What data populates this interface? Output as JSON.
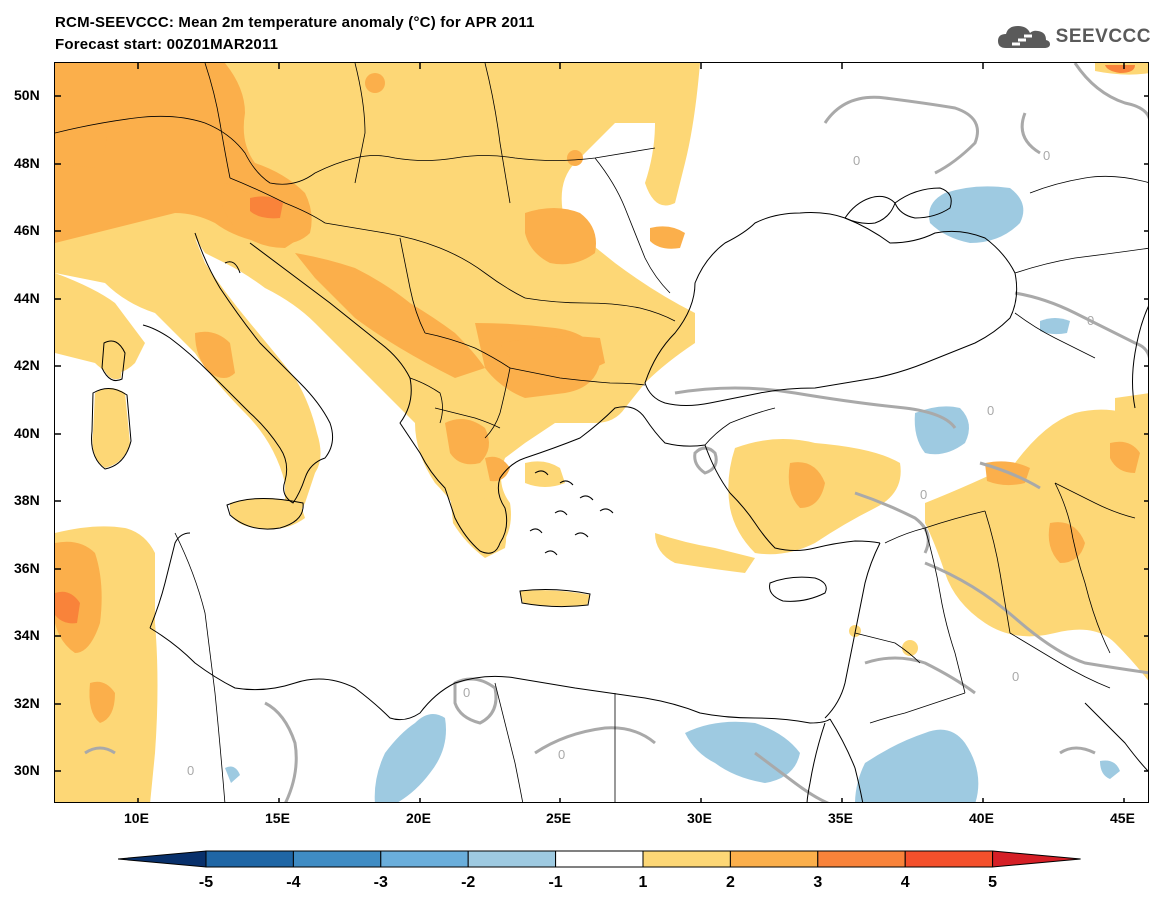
{
  "title_line1": "RCM-SEEVCCC: Mean 2m temperature anomaly (°C) for APR 2011",
  "title_line2": "Forecast start: 00Z01MAR2011",
  "logo_text": "SEEVCCC",
  "lat_labels": [
    "50N",
    "48N",
    "46N",
    "44N",
    "42N",
    "40N",
    "38N",
    "36N",
    "34N",
    "32N",
    "30N"
  ],
  "lon_labels": [
    "10E",
    "15E",
    "20E",
    "25E",
    "30E",
    "35E",
    "40E",
    "45E"
  ],
  "contour_label": "0",
  "colorbar": {
    "ticks": [
      "-5",
      "-4",
      "-3",
      "-2",
      "-1",
      "1",
      "2",
      "3",
      "4",
      "5"
    ],
    "colors": [
      "#08306b",
      "#1f66a5",
      "#3f8cc4",
      "#6aaedb",
      "#9ecae1",
      "#ffffff",
      "#fdd776",
      "#fbaf4b",
      "#f9833a",
      "#f4502b",
      "#d51f26"
    ]
  },
  "palette": {
    "anomaly_1_2": "#fdd776",
    "anomaly_2_3": "#fbaf4b",
    "anomaly_3_4": "#f9833a",
    "anomaly_neg_1_2": "#9ecae1",
    "contour": "#a9a9a9",
    "border": "#000000"
  }
}
